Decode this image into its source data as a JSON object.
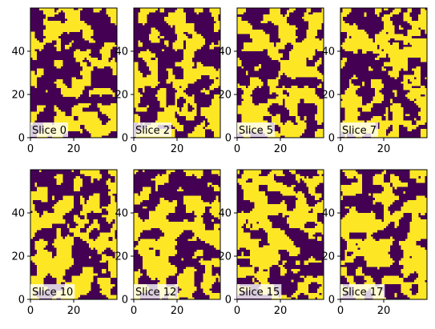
{
  "chart_data": {
    "type": "heatmap",
    "grid": {
      "rows": 2,
      "cols": 4
    },
    "image_width_cells": 40,
    "image_height_cells": 60,
    "xlim": [
      0,
      40
    ],
    "ylim": [
      0,
      60
    ],
    "origin": "lower",
    "colormap": "viridis-binary",
    "colors": {
      "low": "#440154",
      "high": "#fde725"
    },
    "x_ticks": [
      0,
      20
    ],
    "y_ticks": [
      0,
      20,
      40
    ],
    "threshold": 0.5,
    "blob_scale": 4.2,
    "panels": [
      {
        "label": "Slice 0",
        "slice": 0
      },
      {
        "label": "Slice 2",
        "slice": 2
      },
      {
        "label": "Slice 5",
        "slice": 5
      },
      {
        "label": "Slice 7",
        "slice": 7
      },
      {
        "label": "Slice 10",
        "slice": 10
      },
      {
        "label": "Slice 12",
        "slice": 12
      },
      {
        "label": "Slice 15",
        "slice": 15
      },
      {
        "label": "Slice 17",
        "slice": 17
      }
    ]
  }
}
